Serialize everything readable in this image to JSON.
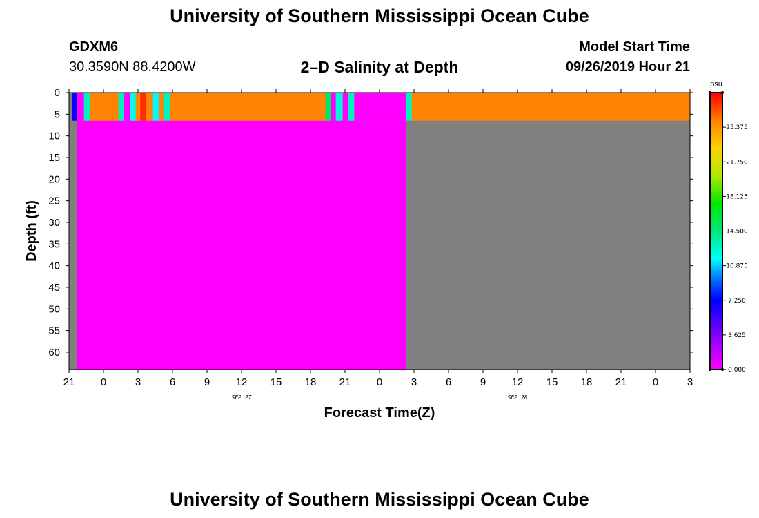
{
  "header": {
    "title": "University of Southern Mississippi Ocean Cube",
    "station_id": "GDXM6",
    "coords": "30.3590N 88.4200W",
    "subtitle": "2–D Salinity at Depth",
    "model_start_label": "Model Start Time",
    "model_start_value": "09/26/2019 Hour 21"
  },
  "footer": {
    "title": "University of Southern Mississippi Ocean Cube"
  },
  "chart_data": {
    "type": "heatmap",
    "title": "2–D Salinity at Depth",
    "xlabel": "Forecast Time(Z)",
    "ylabel": "Depth (ft)",
    "x_unit": "hours since 09/26/2019 21Z",
    "xlim": [
      0,
      54
    ],
    "ylim": [
      0,
      64
    ],
    "y_inverted": true,
    "x_ticks": [
      {
        "hour": 0,
        "label": "21"
      },
      {
        "hour": 3,
        "label": "0"
      },
      {
        "hour": 6,
        "label": "3"
      },
      {
        "hour": 9,
        "label": "6"
      },
      {
        "hour": 12,
        "label": "9"
      },
      {
        "hour": 15,
        "label": "12"
      },
      {
        "hour": 18,
        "label": "15"
      },
      {
        "hour": 21,
        "label": "18"
      },
      {
        "hour": 24,
        "label": "21"
      },
      {
        "hour": 27,
        "label": "0"
      },
      {
        "hour": 30,
        "label": "3"
      },
      {
        "hour": 33,
        "label": "6"
      },
      {
        "hour": 36,
        "label": "9"
      },
      {
        "hour": 39,
        "label": "12"
      },
      {
        "hour": 42,
        "label": "15"
      },
      {
        "hour": 45,
        "label": "18"
      },
      {
        "hour": 48,
        "label": "21"
      },
      {
        "hour": 51,
        "label": "0"
      },
      {
        "hour": 54,
        "label": "3"
      }
    ],
    "date_labels": [
      {
        "hour": 15,
        "label": "SEP 27"
      },
      {
        "hour": 39,
        "label": "SEP 28"
      }
    ],
    "y_ticks": [
      0,
      5,
      10,
      15,
      20,
      25,
      30,
      35,
      40,
      45,
      50,
      55,
      60
    ],
    "surface_layer_depth": 6.5,
    "background_color": "#808080",
    "colorbar": {
      "unit": "psu",
      "min": 0,
      "max": 29,
      "ticks": [
        "0.000",
        "3.625",
        "7.250",
        "10.875",
        "14.500",
        "18.125",
        "21.750",
        "25.375"
      ],
      "tick_values": [
        0,
        3.625,
        7.25,
        10.875,
        14.5,
        18.125,
        21.75,
        25.375
      ]
    },
    "surface_cells": [
      {
        "x0": 0.0,
        "x1": 0.3,
        "value": null
      },
      {
        "x0": 0.3,
        "x1": 0.7,
        "value": 7.0
      },
      {
        "x0": 0.7,
        "x1": 1.3,
        "value": 0.0
      },
      {
        "x0": 1.3,
        "x1": 1.8,
        "value": 13.0
      },
      {
        "x0": 1.8,
        "x1": 4.3,
        "value": 26.0
      },
      {
        "x0": 4.3,
        "x1": 4.8,
        "value": 13.0
      },
      {
        "x0": 4.8,
        "x1": 5.3,
        "value": 0.0
      },
      {
        "x0": 5.3,
        "x1": 5.8,
        "value": 12.0
      },
      {
        "x0": 5.8,
        "x1": 6.2,
        "value": 26.0
      },
      {
        "x0": 6.2,
        "x1": 6.7,
        "value": 28.0
      },
      {
        "x0": 6.7,
        "x1": 7.3,
        "value": 26.0
      },
      {
        "x0": 7.3,
        "x1": 7.8,
        "value": 11.5
      },
      {
        "x0": 7.8,
        "x1": 8.2,
        "value": 26.0
      },
      {
        "x0": 8.2,
        "x1": 8.8,
        "value": 13.0
      },
      {
        "x0": 8.8,
        "x1": 22.3,
        "value": 26.0
      },
      {
        "x0": 22.3,
        "x1": 22.8,
        "value": 15.0
      },
      {
        "x0": 22.8,
        "x1": 23.2,
        "value": 0.0
      },
      {
        "x0": 23.2,
        "x1": 23.8,
        "value": 12.5
      },
      {
        "x0": 23.8,
        "x1": 24.3,
        "value": 0.0
      },
      {
        "x0": 24.3,
        "x1": 24.8,
        "value": 13.0
      },
      {
        "x0": 24.8,
        "x1": 29.3,
        "value": 0.0
      },
      {
        "x0": 29.3,
        "x1": 29.8,
        "value": 13.0
      },
      {
        "x0": 29.8,
        "x1": 54.0,
        "value": 26.0
      }
    ],
    "deep_cells": [
      {
        "x0": 0.0,
        "x1": 0.7,
        "value": null
      },
      {
        "x0": 0.7,
        "x1": 29.3,
        "value": 0.0
      },
      {
        "x0": 29.3,
        "x1": 54.0,
        "value": null
      }
    ]
  }
}
